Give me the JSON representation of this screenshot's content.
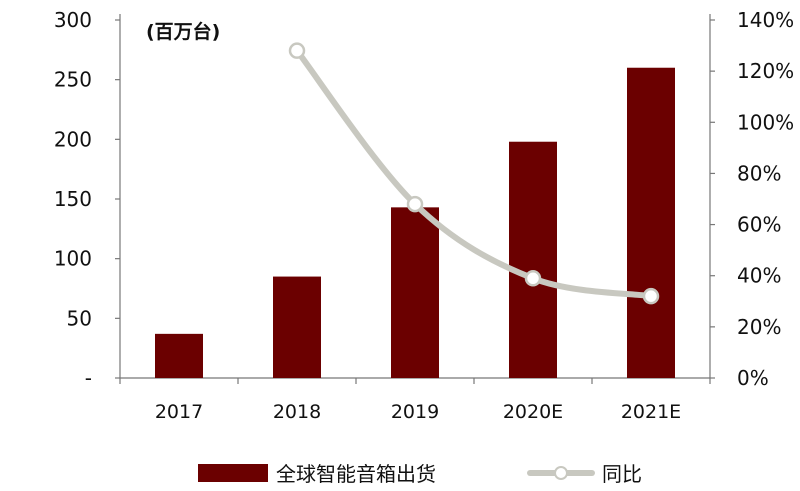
{
  "chart_data": {
    "type": "bar",
    "categories": [
      "2017",
      "2018",
      "2019",
      "2020E",
      "2021E"
    ],
    "unit_label": "(百万台)",
    "series": [
      {
        "name": "全球智能音箱出货",
        "type": "bar",
        "axis": "left",
        "color": "#6b0000",
        "values": [
          37,
          85,
          143,
          198,
          260
        ]
      },
      {
        "name": "同比",
        "type": "line",
        "axis": "right",
        "color": "#c8c8c0",
        "marker_fill": "#ffffff",
        "values": [
          null,
          1.28,
          0.68,
          0.39,
          0.32
        ]
      }
    ],
    "y_left": {
      "min": 0,
      "max": 300,
      "ticks": [
        0,
        50,
        100,
        150,
        200,
        250,
        300
      ],
      "tick_labels": [
        "-",
        "50",
        "100",
        "150",
        "200",
        "250",
        "300"
      ]
    },
    "y_right": {
      "min": 0,
      "max": 1.4,
      "ticks": [
        0,
        0.2,
        0.4,
        0.6,
        0.8,
        1.0,
        1.2,
        1.4
      ],
      "tick_labels": [
        "0%",
        "20%",
        "40%",
        "60%",
        "80%",
        "100%",
        "120%",
        "140%"
      ]
    },
    "grid": false,
    "legend_position": "bottom"
  }
}
